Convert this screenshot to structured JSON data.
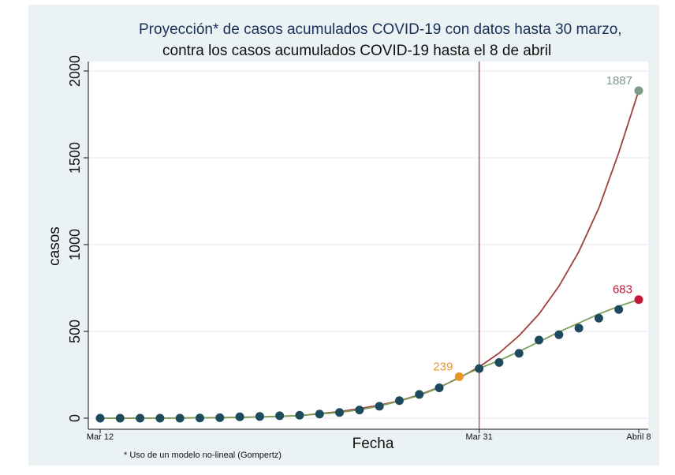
{
  "chart_data": {
    "type": "line",
    "title": "Proyección* de casos acumulados COVID-19 con datos hasta 30 marzo,",
    "subtitle": "contra los casos acumulados COVID-19 hasta el 8 de abril",
    "xlabel": "Fecha",
    "ylabel": "casos",
    "ylim": [
      0,
      2000
    ],
    "yticks": [
      0,
      500,
      1000,
      1500,
      2000
    ],
    "xticks": [
      {
        "day": 0,
        "label": "Mar 12"
      },
      {
        "day": 19,
        "label": "Mar 31"
      },
      {
        "day": 27,
        "label": "Abril 8"
      }
    ],
    "vline_day": 19,
    "note": "* Uso de un modelo no-lineal (Gompertz)",
    "series": [
      {
        "kind": "observed",
        "x": [
          0,
          1,
          2,
          3,
          4,
          5,
          6,
          7,
          8,
          9,
          10,
          11,
          12,
          13,
          14,
          15,
          16,
          17,
          18,
          19,
          20,
          21,
          22,
          23,
          24,
          25,
          26,
          27
        ],
        "values": [
          0,
          0,
          0,
          0,
          0,
          1,
          3,
          8,
          10,
          14,
          17,
          24,
          33,
          47,
          69,
          101,
          137,
          175,
          239,
          286,
          321,
          374,
          450,
          481,
          519,
          576,
          626,
          683
        ],
        "color": "#1e4a5e"
      },
      {
        "kind": "fit",
        "x": [
          0,
          2,
          4,
          6,
          8,
          10,
          12,
          13,
          14,
          15,
          16,
          17,
          18,
          19,
          20,
          21,
          22,
          23,
          24,
          25,
          26,
          27
        ],
        "values": [
          0,
          0,
          1,
          3,
          7,
          15,
          38,
          55,
          75,
          100,
          135,
          178,
          232,
          295,
          375,
          475,
          600,
          760,
          960,
          1210,
          1530,
          1887
        ],
        "color": "#a0403c"
      },
      {
        "kind": "fit-obs",
        "x": [
          0,
          2,
          4,
          6,
          8,
          10,
          12,
          13,
          14,
          15,
          16,
          17,
          18,
          19,
          20,
          21,
          22,
          23,
          24,
          25,
          26,
          27
        ],
        "values": [
          0,
          0,
          1,
          3,
          7,
          15,
          33,
          48,
          70,
          98,
          132,
          175,
          236,
          287,
          332,
          384,
          440,
          497,
          548,
          600,
          645,
          683
        ],
        "color": "#7da05a"
      }
    ],
    "annotations": [
      {
        "day": 18,
        "value": 239,
        "label": "239",
        "color": "#e8952a"
      },
      {
        "day": 27,
        "value": 1887,
        "label": "1887",
        "color": "#7f9a88"
      },
      {
        "day": 27,
        "value": 683,
        "label": "683",
        "color": "#c0193a"
      }
    ],
    "grid": "horizontal"
  }
}
